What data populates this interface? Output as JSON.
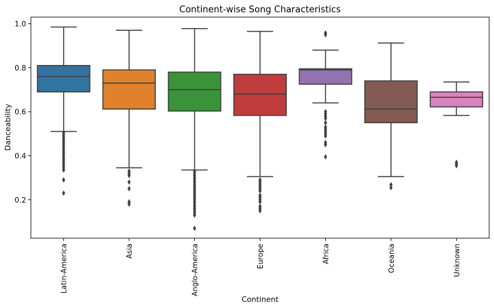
{
  "chart_data": {
    "type": "box",
    "title": "Continent-wise Song Characteristics",
    "xlabel": "Continent",
    "ylabel": "Danceability",
    "ylim": [
      0.025,
      1.03
    ],
    "yticks": [
      "0.2",
      "0.4",
      "0.6",
      "0.8",
      "1.0"
    ],
    "grid": false,
    "categories": [
      "Latin-America",
      "Asia",
      "Anglo-America",
      "Europe",
      "Africa",
      "Oceania",
      "Unknown"
    ],
    "colors": [
      "#3274a1",
      "#e1812c",
      "#3a923a",
      "#c03d3e",
      "#9372b2",
      "#845b53",
      "#d684bd"
    ],
    "boxes": [
      {
        "name": "Latin-America",
        "whisker_low": 0.51,
        "q1": 0.69,
        "median": 0.76,
        "q3": 0.81,
        "whisker_high": 0.985,
        "outliers": [
          0.505,
          0.495,
          0.485,
          0.475,
          0.465,
          0.455,
          0.445,
          0.435,
          0.425,
          0.415,
          0.405,
          0.395,
          0.385,
          0.375,
          0.365,
          0.355,
          0.345,
          0.335,
          0.29,
          0.23
        ]
      },
      {
        "name": "Asia",
        "whisker_low": 0.345,
        "q1": 0.612,
        "median": 0.73,
        "q3": 0.79,
        "whisker_high": 0.97,
        "outliers": [
          0.33,
          0.32,
          0.31,
          0.28,
          0.25,
          0.19,
          0.18
        ]
      },
      {
        "name": "Anglo-America",
        "whisker_low": 0.335,
        "q1": 0.603,
        "median": 0.7,
        "q3": 0.78,
        "whisker_high": 0.978,
        "outliers": [
          0.33,
          0.32,
          0.31,
          0.3,
          0.29,
          0.28,
          0.27,
          0.26,
          0.25,
          0.24,
          0.23,
          0.22,
          0.21,
          0.2,
          0.19,
          0.18,
          0.17,
          0.16,
          0.15,
          0.14,
          0.13,
          0.07
        ]
      },
      {
        "name": "Europe",
        "whisker_low": 0.305,
        "q1": 0.583,
        "median": 0.68,
        "q3": 0.77,
        "whisker_high": 0.965,
        "outliers": [
          0.29,
          0.28,
          0.27,
          0.26,
          0.25,
          0.24,
          0.22,
          0.21,
          0.2,
          0.19,
          0.17,
          0.16,
          0.15
        ]
      },
      {
        "name": "Africa",
        "whisker_low": 0.64,
        "q1": 0.725,
        "median": 0.79,
        "q3": 0.795,
        "whisker_high": 0.88,
        "outliers": [
          0.958,
          0.95,
          0.6,
          0.59,
          0.58,
          0.57,
          0.55,
          0.53,
          0.52,
          0.51,
          0.5,
          0.49,
          0.46,
          0.45,
          0.395
        ]
      },
      {
        "name": "Oceania",
        "whisker_low": 0.305,
        "q1": 0.55,
        "median": 0.612,
        "q3": 0.74,
        "whisker_high": 0.912,
        "outliers": [
          0.268,
          0.255
        ]
      },
      {
        "name": "Unknown",
        "whisker_low": 0.583,
        "q1": 0.622,
        "median": 0.665,
        "q3": 0.69,
        "whisker_high": 0.735,
        "outliers": [
          0.37,
          0.362,
          0.355
        ]
      }
    ]
  }
}
